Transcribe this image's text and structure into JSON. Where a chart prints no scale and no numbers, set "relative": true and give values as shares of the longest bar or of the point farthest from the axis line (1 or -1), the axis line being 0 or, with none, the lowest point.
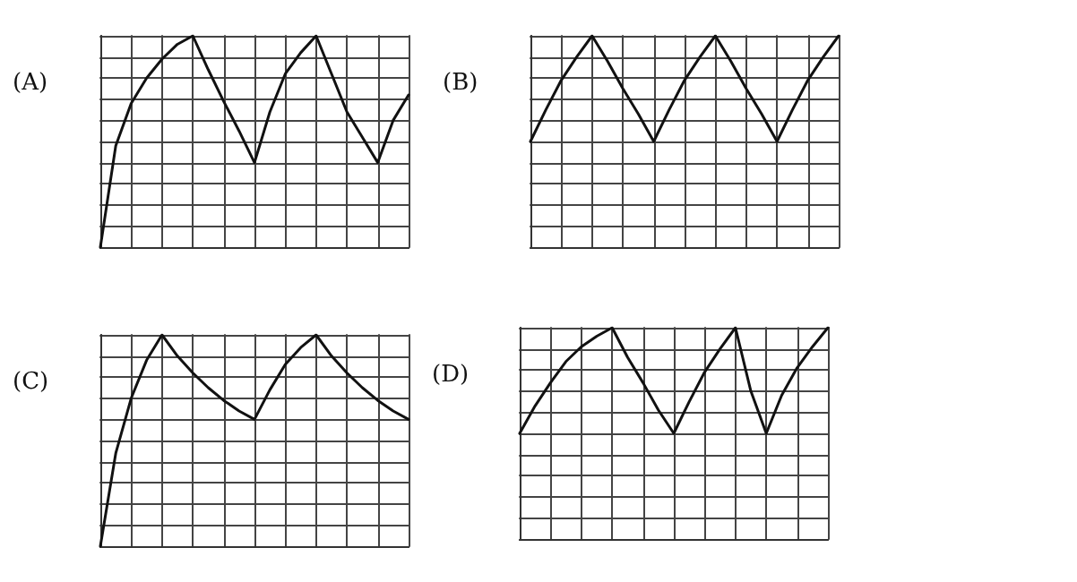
{
  "chart_data": [
    {
      "type": "line",
      "title": "(A)",
      "relative": true,
      "grid": true,
      "marker": "none",
      "line_style": "solid",
      "categories": [
        null,
        null,
        null,
        null,
        null,
        null,
        null,
        null,
        null,
        null,
        null,
        null,
        null,
        null,
        null,
        null,
        null,
        null,
        null,
        null,
        null
      ],
      "series": [
        {
          "color": "#111111",
          "values": [
            0,
            0.48,
            0.68,
            0.8,
            0.89,
            0.96,
            1,
            0.84,
            0.69,
            0.55,
            0.4,
            0.64,
            0.82,
            0.92,
            1,
            0.82,
            0.64,
            0.52,
            0.4,
            0.6,
            0.72
          ]
        }
      ]
    },
    {
      "type": "line",
      "title": "(B)",
      "relative": true,
      "grid": true,
      "marker": "none",
      "line_style": "solid",
      "categories": [
        null,
        null,
        null,
        null,
        null,
        null,
        null,
        null,
        null,
        null,
        null,
        null,
        null,
        null,
        null,
        null,
        null,
        null,
        null,
        null,
        null
      ],
      "series": [
        {
          "color": "#111111",
          "values": [
            0.5,
            0.65,
            0.79,
            0.9,
            1,
            0.88,
            0.75,
            0.63,
            0.5,
            0.65,
            0.79,
            0.9,
            1,
            0.88,
            0.75,
            0.63,
            0.5,
            0.65,
            0.79,
            0.9,
            1
          ]
        }
      ]
    },
    {
      "type": "line",
      "title": "(C)",
      "relative": true,
      "grid": true,
      "marker": "none",
      "line_style": "solid",
      "categories": [
        null,
        null,
        null,
        null,
        null,
        null,
        null,
        null,
        null,
        null,
        null,
        null,
        null,
        null,
        null,
        null,
        null,
        null,
        null,
        null,
        null
      ],
      "series": [
        {
          "color": "#111111",
          "values": [
            0,
            0.44,
            0.7,
            0.88,
            1,
            0.9,
            0.82,
            0.75,
            0.69,
            0.64,
            0.6,
            0.74,
            0.86,
            0.94,
            1,
            0.9,
            0.82,
            0.75,
            0.69,
            0.64,
            0.6
          ]
        }
      ]
    },
    {
      "type": "line",
      "title": "(D)",
      "relative": true,
      "grid": true,
      "marker": "none",
      "line_style": "solid",
      "categories": [
        null,
        null,
        null,
        null,
        null,
        null,
        null,
        null,
        null,
        null,
        null,
        null,
        null,
        null,
        null,
        null,
        null,
        null,
        null,
        null,
        null
      ],
      "series": [
        {
          "color": "#111111",
          "values": [
            0.5,
            0.63,
            0.74,
            0.84,
            0.91,
            0.96,
            1,
            0.86,
            0.74,
            0.61,
            0.5,
            0.65,
            0.79,
            0.9,
            1,
            0.7,
            0.5,
            0.68,
            0.81,
            0.91,
            1
          ]
        }
      ]
    }
  ]
}
